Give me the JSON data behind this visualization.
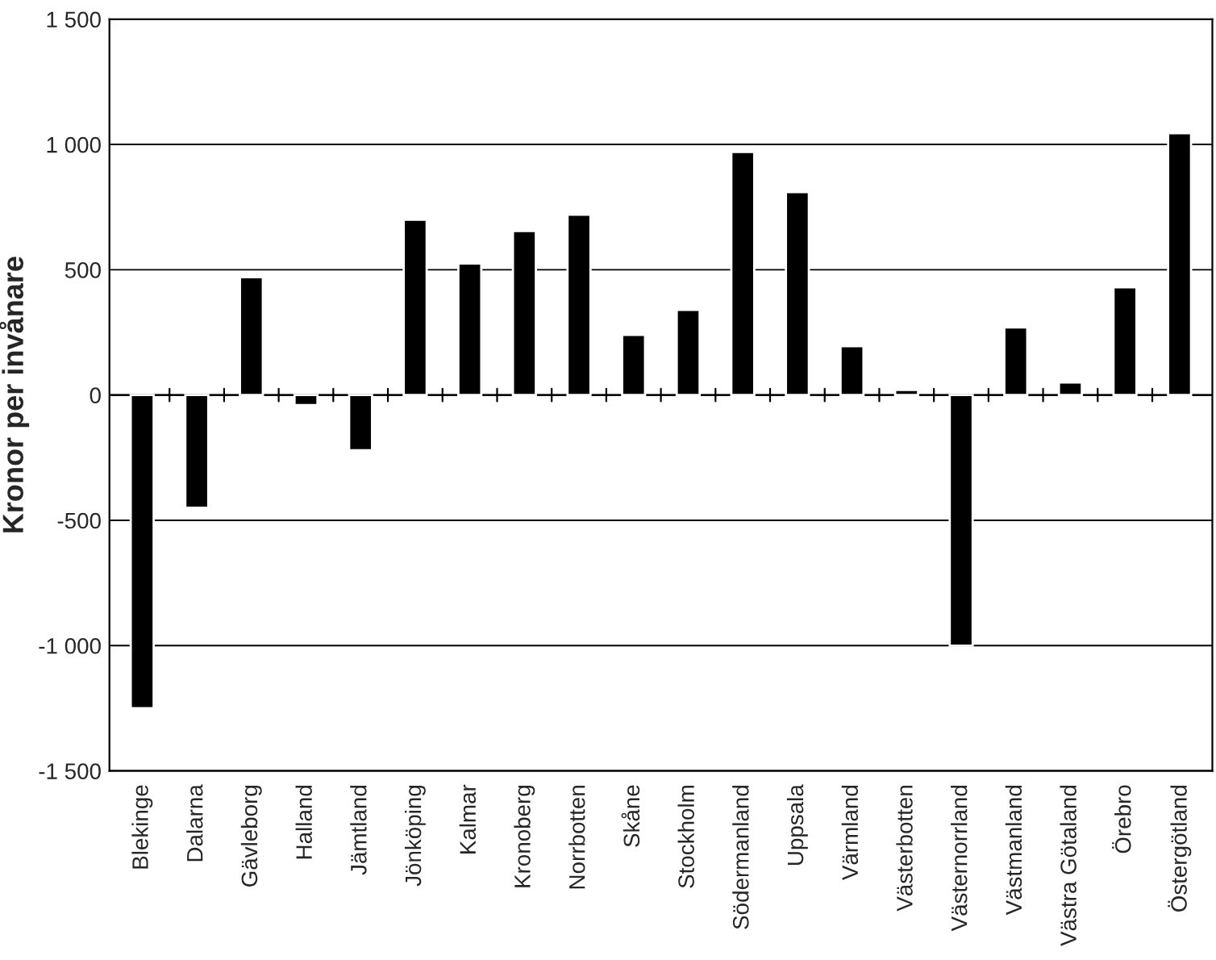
{
  "chart_data": {
    "type": "bar",
    "ylabel": "Kronor per invånare",
    "categories": [
      "Blekinge",
      "Dalarna",
      "Gävleborg",
      "Halland",
      "Jämtland",
      "Jönköping",
      "Kalmar",
      "Kronoberg",
      "Norrbotten",
      "Skåne",
      "Stockholm",
      "Södermanland",
      "Uppsala",
      "Värmland",
      "Västerbotten",
      "Västernorrland",
      "Västmanland",
      "Västra Götaland",
      "Örebro",
      "Östergötland"
    ],
    "values": [
      -1250,
      -450,
      470,
      -40,
      -220,
      700,
      525,
      655,
      720,
      240,
      340,
      970,
      810,
      195,
      20,
      -1000,
      270,
      50,
      430,
      1045
    ],
    "color": "#000000",
    "ylim": [
      -1500,
      1500
    ],
    "yticks": [
      {
        "value": -1500,
        "label": "-1 500"
      },
      {
        "value": -1000,
        "label": "-1 000"
      },
      {
        "value": -500,
        "label": "-500"
      },
      0,
      500,
      {
        "value": 1000,
        "label": "1 000"
      },
      {
        "value": 1500,
        "label": "1 500"
      }
    ],
    "grid": "y",
    "legend": false
  }
}
